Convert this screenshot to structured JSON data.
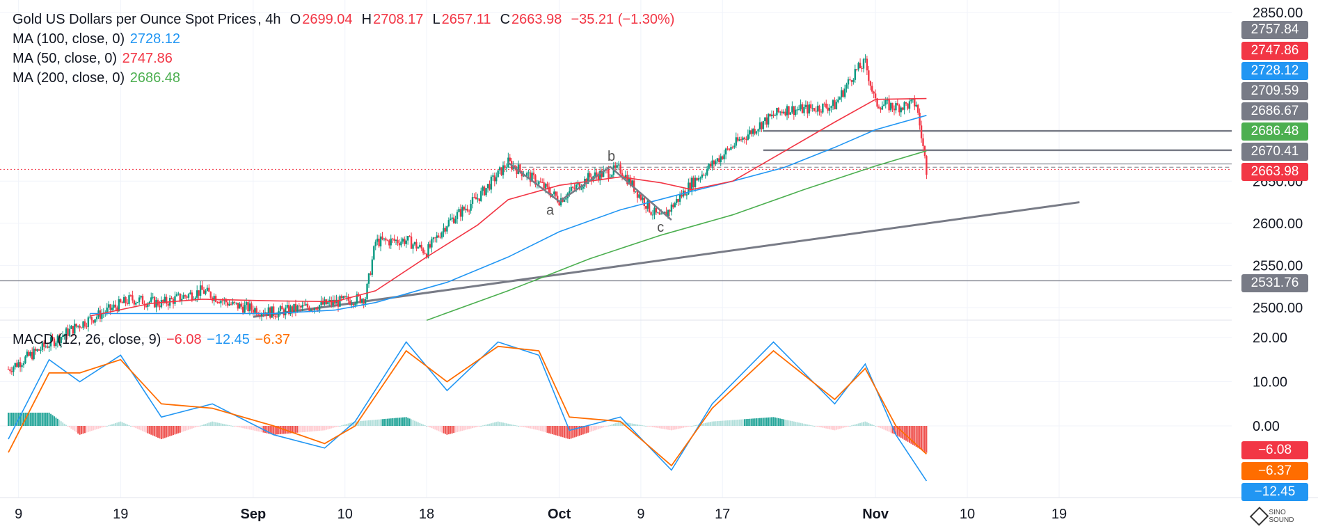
{
  "header": {
    "symbol": "Gold US Dollars per Ounce Spot Prices",
    "interval": "4h",
    "o_label": "O",
    "o_value": "2699.04",
    "h_label": "H",
    "h_value": "2708.17",
    "l_label": "L",
    "l_value": "2657.11",
    "c_label": "C",
    "c_value": "2663.98",
    "change": "−35.21 (−1.30%)"
  },
  "indicators": [
    {
      "label": "MA (100, close, 0)",
      "value": "2728.12",
      "color": "#2196f3"
    },
    {
      "label": "MA (50, close, 0)",
      "value": "2747.86",
      "color": "#f23645"
    },
    {
      "label": "MA (200, close, 0)",
      "value": "2686.48",
      "color": "#4caf50"
    }
  ],
  "macd": {
    "label": "MACD (12, 26, close, 9)",
    "hist_value": "−6.08",
    "macd_value": "−12.45",
    "signal_value": "−6.37",
    "hist_color": "#f23645",
    "macd_color": "#2196f3",
    "signal_color": "#ff6d00"
  },
  "price_tags": [
    {
      "text": "2757.84",
      "color": "#787b86"
    },
    {
      "text": "2747.86",
      "color": "#f23645"
    },
    {
      "text": "2728.12",
      "color": "#2196f3"
    },
    {
      "text": "2709.59",
      "color": "#787b86"
    },
    {
      "text": "2686.67",
      "color": "#787b86"
    },
    {
      "text": "2686.48",
      "color": "#4caf50"
    },
    {
      "text": "2670.41",
      "color": "#787b86"
    },
    {
      "text": "2663.98",
      "color": "#f23645"
    },
    {
      "text": "2531.76",
      "color": "#787b86"
    }
  ],
  "macd_tags": [
    {
      "text": "−6.08",
      "color": "#f23645"
    },
    {
      "text": "−6.37",
      "color": "#ff6d00"
    },
    {
      "text": "−12.45",
      "color": "#2196f3"
    }
  ],
  "annotations": {
    "a": "a",
    "b": "b",
    "c": "c"
  },
  "logo_text": "SINO SOUND",
  "chart_data": {
    "type": "candlestick",
    "price_axis": {
      "ticks": [
        2500,
        2550,
        2600,
        2650,
        2850
      ],
      "tick_labels": [
        "2500.00",
        "2550.00",
        "2600.00",
        "2650.00",
        "2850.00"
      ],
      "range": [
        2485,
        2855
      ]
    },
    "macd_axis": {
      "ticks": [
        20,
        10,
        0
      ],
      "tick_labels": [
        "20.00",
        "10.00",
        "0.00"
      ],
      "range": [
        -13,
        22
      ]
    },
    "x_axis": {
      "ticks": [
        "9",
        "19",
        "Sep",
        "10",
        "18",
        "Oct",
        "9",
        "17",
        "Nov",
        "10",
        "19"
      ]
    },
    "close_path": [
      {
        "x": "2024-08-08",
        "y": 2427
      },
      {
        "x": "2024-08-15",
        "y": 2480
      },
      {
        "x": "2024-08-20",
        "y": 2510
      },
      {
        "x": "2024-08-23",
        "y": 2505
      },
      {
        "x": "2024-08-27",
        "y": 2520
      },
      {
        "x": "2024-08-30",
        "y": 2503
      },
      {
        "x": "2024-09-03",
        "y": 2494
      },
      {
        "x": "2024-09-06",
        "y": 2500
      },
      {
        "x": "2024-09-09",
        "y": 2506
      },
      {
        "x": "2024-09-12",
        "y": 2512
      },
      {
        "x": "2024-09-13",
        "y": 2578
      },
      {
        "x": "2024-09-16",
        "y": 2580
      },
      {
        "x": "2024-09-18",
        "y": 2566
      },
      {
        "x": "2024-09-20",
        "y": 2600
      },
      {
        "x": "2024-09-23",
        "y": 2630
      },
      {
        "x": "2024-09-26",
        "y": 2672
      },
      {
        "x": "2024-09-29",
        "y": 2648
      },
      {
        "x": "2024-10-01",
        "y": 2628
      },
      {
        "x": "2024-10-04",
        "y": 2655
      },
      {
        "x": "2024-10-07",
        "y": 2664
      },
      {
        "x": "2024-10-10",
        "y": 2615
      },
      {
        "x": "2024-10-11",
        "y": 2605
      },
      {
        "x": "2024-10-14",
        "y": 2648
      },
      {
        "x": "2024-10-16",
        "y": 2670
      },
      {
        "x": "2024-10-18",
        "y": 2692
      },
      {
        "x": "2024-10-21",
        "y": 2720
      },
      {
        "x": "2024-10-23",
        "y": 2735
      },
      {
        "x": "2024-10-25",
        "y": 2735
      },
      {
        "x": "2024-10-28",
        "y": 2740
      },
      {
        "x": "2024-10-30",
        "y": 2780
      },
      {
        "x": "2024-10-31",
        "y": 2790
      },
      {
        "x": "2024-11-01",
        "y": 2742
      },
      {
        "x": "2024-11-03",
        "y": 2738
      },
      {
        "x": "2024-11-04",
        "y": 2740
      },
      {
        "x": "2024-11-05",
        "y": 2742
      },
      {
        "x": "2024-11-06",
        "y": 2664
      }
    ],
    "ma100_path": [
      {
        "x": "2024-08-16",
        "y": 2493
      },
      {
        "x": "2024-09-03",
        "y": 2493
      },
      {
        "x": "2024-09-09",
        "y": 2497
      },
      {
        "x": "2024-09-13",
        "y": 2506
      },
      {
        "x": "2024-09-20",
        "y": 2530
      },
      {
        "x": "2024-09-26",
        "y": 2560
      },
      {
        "x": "2024-10-01",
        "y": 2590
      },
      {
        "x": "2024-10-07",
        "y": 2616
      },
      {
        "x": "2024-10-14",
        "y": 2638
      },
      {
        "x": "2024-10-18",
        "y": 2650
      },
      {
        "x": "2024-10-23",
        "y": 2666
      },
      {
        "x": "2024-10-28",
        "y": 2690
      },
      {
        "x": "2024-11-01",
        "y": 2711
      },
      {
        "x": "2024-11-06",
        "y": 2728
      }
    ],
    "ma50_path": [
      {
        "x": "2024-08-16",
        "y": 2490
      },
      {
        "x": "2024-08-22",
        "y": 2505
      },
      {
        "x": "2024-08-27",
        "y": 2510
      },
      {
        "x": "2024-09-03",
        "y": 2508
      },
      {
        "x": "2024-09-09",
        "y": 2507
      },
      {
        "x": "2024-09-13",
        "y": 2520
      },
      {
        "x": "2024-09-18",
        "y": 2560
      },
      {
        "x": "2024-09-23",
        "y": 2598
      },
      {
        "x": "2024-09-26",
        "y": 2628
      },
      {
        "x": "2024-10-01",
        "y": 2645
      },
      {
        "x": "2024-10-07",
        "y": 2655
      },
      {
        "x": "2024-10-11",
        "y": 2648
      },
      {
        "x": "2024-10-14",
        "y": 2640
      },
      {
        "x": "2024-10-18",
        "y": 2650
      },
      {
        "x": "2024-10-23",
        "y": 2685
      },
      {
        "x": "2024-10-28",
        "y": 2720
      },
      {
        "x": "2024-11-01",
        "y": 2747
      },
      {
        "x": "2024-11-06",
        "y": 2748
      }
    ],
    "ma200_path": [
      {
        "x": "2024-09-18",
        "y": 2485
      },
      {
        "x": "2024-09-26",
        "y": 2520
      },
      {
        "x": "2024-10-04",
        "y": 2558
      },
      {
        "x": "2024-10-11",
        "y": 2586
      },
      {
        "x": "2024-10-18",
        "y": 2610
      },
      {
        "x": "2024-10-25",
        "y": 2640
      },
      {
        "x": "2024-11-01",
        "y": 2668
      },
      {
        "x": "2024-11-06",
        "y": 2686
      }
    ],
    "trendline": [
      {
        "x": "2024-09-01",
        "y": 2489
      },
      {
        "x": "2024-11-21",
        "y": 2625
      }
    ],
    "support_resistance": [
      2531.76,
      2709.59,
      2686.67,
      2670.41,
      2663.98
    ],
    "macd_line": [
      {
        "x": "2024-08-08",
        "y": -3
      },
      {
        "x": "2024-08-12",
        "y": 15
      },
      {
        "x": "2024-08-15",
        "y": 10
      },
      {
        "x": "2024-08-19",
        "y": 16
      },
      {
        "x": "2024-08-23",
        "y": 2
      },
      {
        "x": "2024-08-28",
        "y": 5
      },
      {
        "x": "2024-09-03",
        "y": -2
      },
      {
        "x": "2024-09-08",
        "y": -5
      },
      {
        "x": "2024-09-11",
        "y": 1
      },
      {
        "x": "2024-09-16",
        "y": 19
      },
      {
        "x": "2024-09-20",
        "y": 8
      },
      {
        "x": "2024-09-25",
        "y": 19
      },
      {
        "x": "2024-09-29",
        "y": 16
      },
      {
        "x": "2024-10-02",
        "y": -1
      },
      {
        "x": "2024-10-07",
        "y": 2
      },
      {
        "x": "2024-10-12",
        "y": -10
      },
      {
        "x": "2024-10-16",
        "y": 5
      },
      {
        "x": "2024-10-22",
        "y": 19
      },
      {
        "x": "2024-10-28",
        "y": 5
      },
      {
        "x": "2024-10-31",
        "y": 14
      },
      {
        "x": "2024-11-03",
        "y": -2
      },
      {
        "x": "2024-11-06",
        "y": -12.45
      }
    ],
    "signal_line": [
      {
        "x": "2024-08-08",
        "y": -6
      },
      {
        "x": "2024-08-12",
        "y": 12
      },
      {
        "x": "2024-08-15",
        "y": 12
      },
      {
        "x": "2024-08-19",
        "y": 15
      },
      {
        "x": "2024-08-23",
        "y": 5
      },
      {
        "x": "2024-08-28",
        "y": 4
      },
      {
        "x": "2024-09-03",
        "y": 0
      },
      {
        "x": "2024-09-08",
        "y": -4
      },
      {
        "x": "2024-09-11",
        "y": 0
      },
      {
        "x": "2024-09-16",
        "y": 17
      },
      {
        "x": "2024-09-20",
        "y": 10
      },
      {
        "x": "2024-09-25",
        "y": 18
      },
      {
        "x": "2024-09-29",
        "y": 17
      },
      {
        "x": "2024-10-02",
        "y": 2
      },
      {
        "x": "2024-10-07",
        "y": 1
      },
      {
        "x": "2024-10-12",
        "y": -9
      },
      {
        "x": "2024-10-16",
        "y": 4
      },
      {
        "x": "2024-10-22",
        "y": 17
      },
      {
        "x": "2024-10-28",
        "y": 6
      },
      {
        "x": "2024-10-31",
        "y": 13
      },
      {
        "x": "2024-11-03",
        "y": 0
      },
      {
        "x": "2024-11-06",
        "y": -6.37
      }
    ]
  }
}
